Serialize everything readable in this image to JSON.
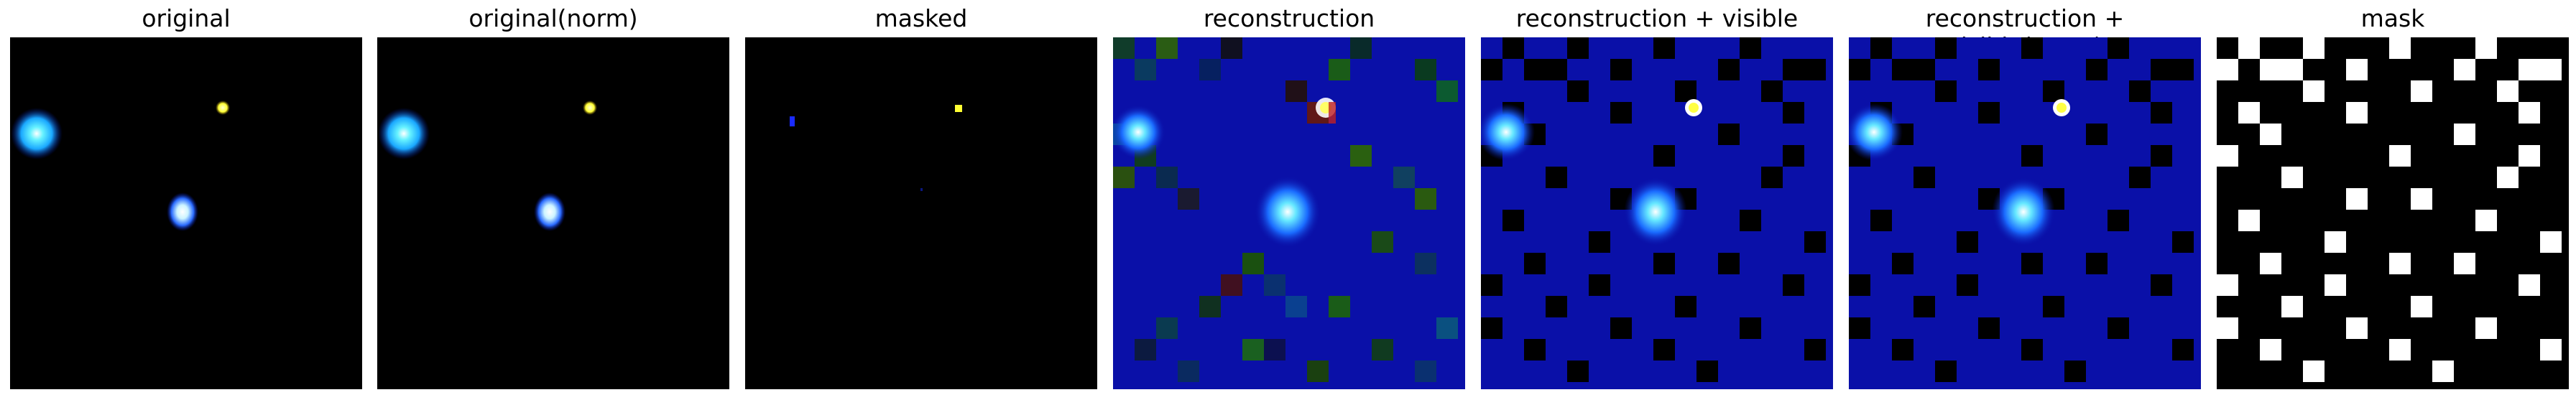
{
  "panels": [
    {
      "id": "original",
      "title": "original"
    },
    {
      "id": "original_norm",
      "title": "original(norm)"
    },
    {
      "id": "masked",
      "title": "masked"
    },
    {
      "id": "reconstruction",
      "title": "reconstruction"
    },
    {
      "id": "recon_visible",
      "title": "reconstruction + visible"
    },
    {
      "id": "recon_visible_norm",
      "title": "reconstruction + visible(norm)"
    },
    {
      "id": "mask",
      "title": "mask"
    }
  ],
  "colors": {
    "background": "#ffffff",
    "image_black": "#000000",
    "recon_blue": "#0a10a8",
    "glow_cyan": "#33ddff",
    "glow_blue": "#1a4dff",
    "yellow_star": "#ffff33",
    "mask_white": "#ffffff"
  }
}
